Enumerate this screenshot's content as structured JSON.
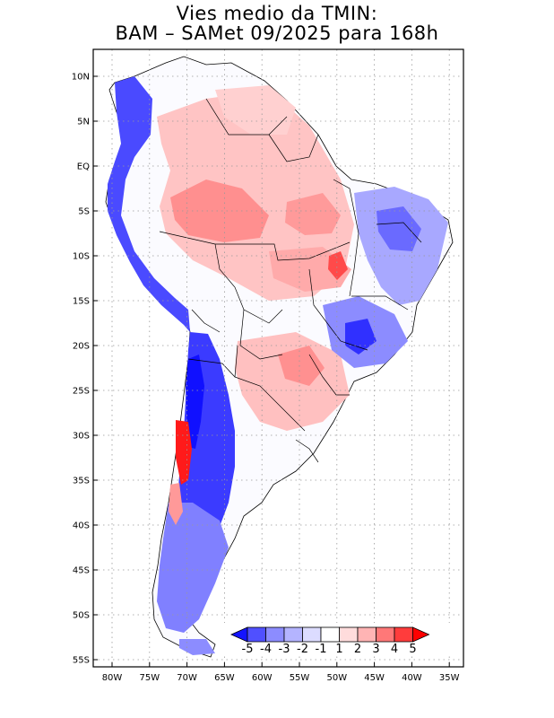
{
  "title": {
    "line1": "Vies medio da TMIN:",
    "line2": "BAM – SAMet 09/2025  para 168h"
  },
  "map": {
    "lat_labels": [
      "10N",
      "5N",
      "EQ",
      "5S",
      "10S",
      "15S",
      "20S",
      "25S",
      "30S",
      "35S",
      "40S",
      "45S",
      "50S",
      "55S"
    ],
    "lon_labels": [
      "80W",
      "75W",
      "70W",
      "65W",
      "60W",
      "55W",
      "50W",
      "45W",
      "40W",
      "35W"
    ],
    "lat_values": [
      10,
      5,
      0,
      -5,
      -10,
      -15,
      -20,
      -25,
      -30,
      -35,
      -40,
      -45,
      -50,
      -55
    ],
    "lon_values": [
      -80,
      -75,
      -70,
      -65,
      -60,
      -55,
      -50,
      -45,
      -40,
      -35
    ]
  },
  "legend": {
    "labels": [
      "-5",
      "-4",
      "-3",
      "-2",
      "-1",
      "1",
      "2",
      "3",
      "4",
      "5"
    ],
    "colors": [
      "#1414ff",
      "#5050ff",
      "#8c8cff",
      "#b4b4ff",
      "#dcdcff",
      "#ffffff",
      "#ffdcdc",
      "#ffb4b4",
      "#ff7878",
      "#ff3c3c",
      "#ff0000"
    ]
  }
}
